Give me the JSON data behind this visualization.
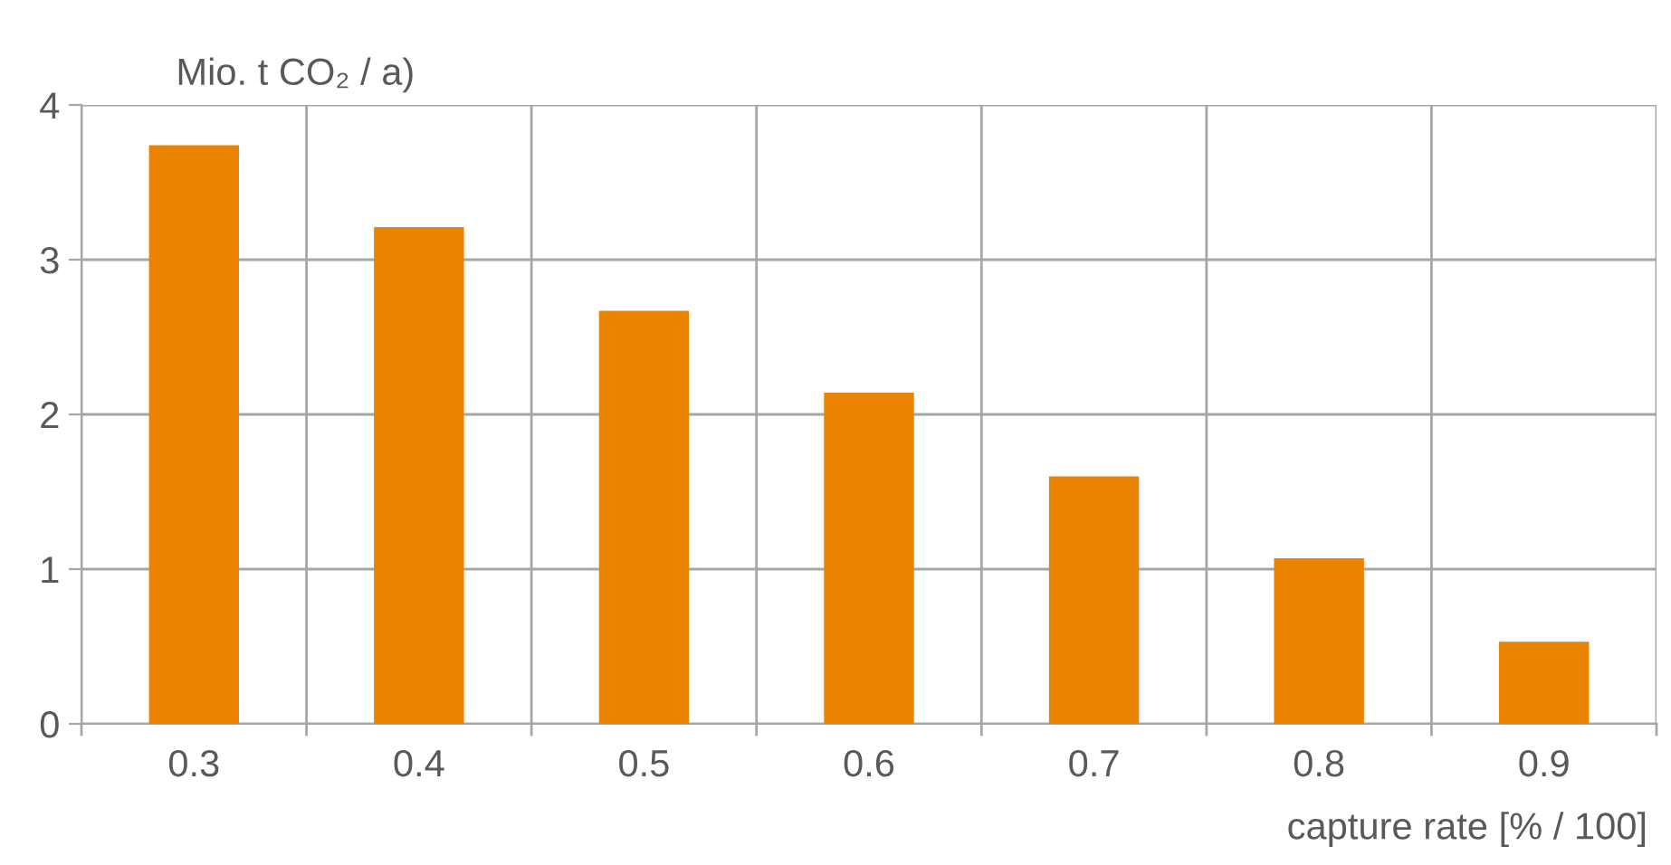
{
  "chart_data": {
    "type": "bar",
    "categories": [
      "0.3",
      "0.4",
      "0.5",
      "0.6",
      "0.7",
      "0.8",
      "0.9"
    ],
    "values": [
      3.74,
      3.21,
      2.67,
      2.14,
      1.6,
      1.07,
      0.53
    ],
    "color": "#ea8400",
    "ylabel": "Mio. t CO₂ / a)",
    "xlabel": "capture rate [% / 100]",
    "ylim": [
      0,
      4
    ],
    "yticks": [
      0,
      1,
      2,
      3,
      4
    ],
    "grid": true
  }
}
